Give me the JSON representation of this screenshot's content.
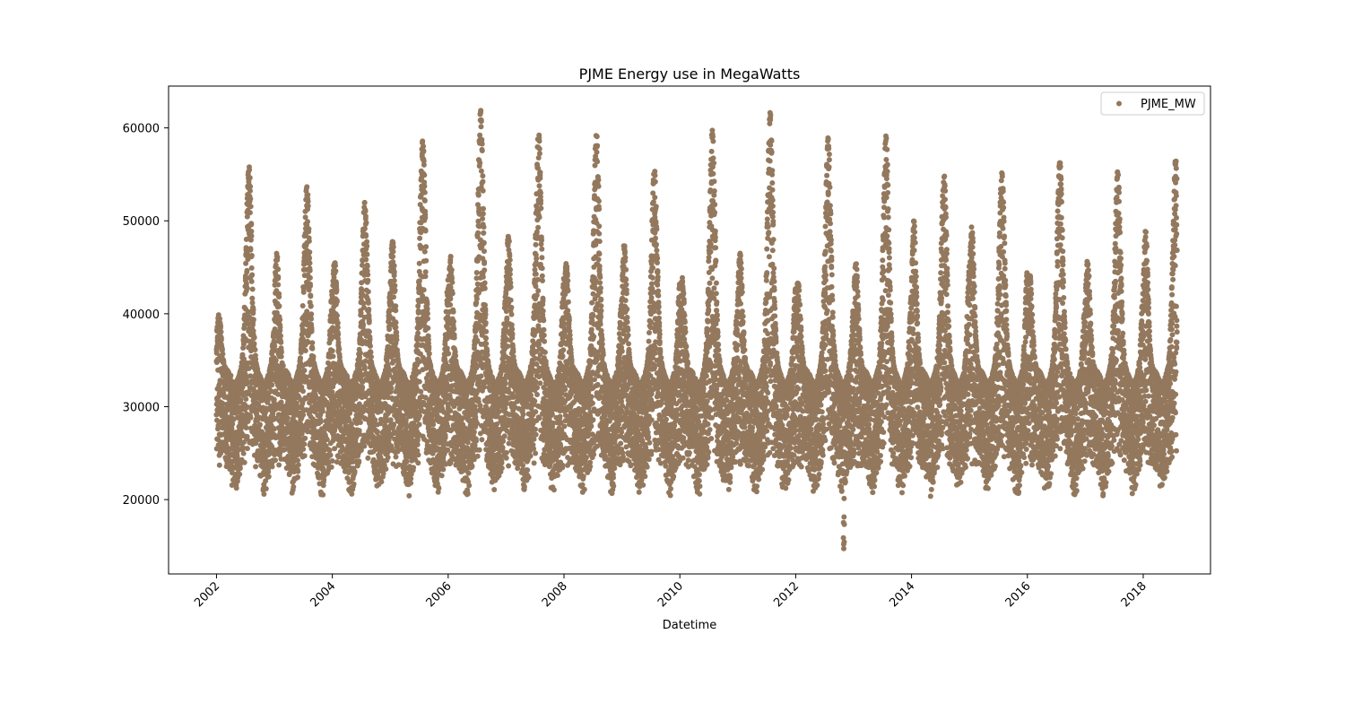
{
  "chart_data": {
    "type": "scatter",
    "title": "PJME Energy use in MegaWatts",
    "xlabel": "Datetime",
    "ylabel": "",
    "xlim": [
      "2001-03-05",
      "2019-03-01"
    ],
    "ylim": [
      12000,
      64500
    ],
    "xticks": [
      "2002",
      "2004",
      "2006",
      "2008",
      "2010",
      "2012",
      "2014",
      "2016",
      "2018"
    ],
    "yticks": [
      20000,
      30000,
      40000,
      50000,
      60000
    ],
    "legend": {
      "position": "top-right",
      "entries": [
        "PJME_MW"
      ]
    },
    "grid": false,
    "marker_color": "#93785d",
    "series": [
      {
        "name": "PJME_MW",
        "x_start": "2002-01-01",
        "x_end": "2018-08-03",
        "min": 14500,
        "max": 62000,
        "yearly_peaks": [
          {
            "year": 2002,
            "winter": 40000,
            "summer": 56000,
            "summer_low": 19500
          },
          {
            "year": 2003,
            "winter": 46500,
            "summer": 53800,
            "summer_low": 19300
          },
          {
            "year": 2004,
            "winter": 45800,
            "summer": 52000,
            "summer_low": 19500
          },
          {
            "year": 2005,
            "winter": 48000,
            "summer": 59000,
            "summer_low": 19800
          },
          {
            "year": 2006,
            "winter": 46200,
            "summer": 62000,
            "summer_low": 19700
          },
          {
            "year": 2007,
            "winter": 48500,
            "summer": 59500,
            "summer_low": 21000
          },
          {
            "year": 2008,
            "winter": 45500,
            "summer": 59700,
            "summer_low": 20500
          },
          {
            "year": 2009,
            "winter": 47500,
            "summer": 55500,
            "summer_low": 20200
          },
          {
            "year": 2010,
            "winter": 44000,
            "summer": 59800,
            "summer_low": 20200
          },
          {
            "year": 2011,
            "winter": 46500,
            "summer": 61700,
            "summer_low": 20100
          },
          {
            "year": 2012,
            "winter": 43500,
            "summer": 59000,
            "summer_low": 14500
          },
          {
            "year": 2013,
            "winter": 45500,
            "summer": 59200,
            "summer_low": 19600
          },
          {
            "year": 2014,
            "winter": 50000,
            "summer": 55000,
            "summer_low": 19600
          },
          {
            "year": 2015,
            "winter": 49400,
            "summer": 55200,
            "summer_low": 19500
          },
          {
            "year": 2016,
            "winter": 44300,
            "summer": 56400,
            "summer_low": 19600
          },
          {
            "year": 2017,
            "winter": 45800,
            "summer": 55300,
            "summer_low": 19200
          },
          {
            "year": 2018,
            "winter": 49000,
            "summer": 56700,
            "summer_low": 20000
          }
        ]
      }
    ]
  }
}
